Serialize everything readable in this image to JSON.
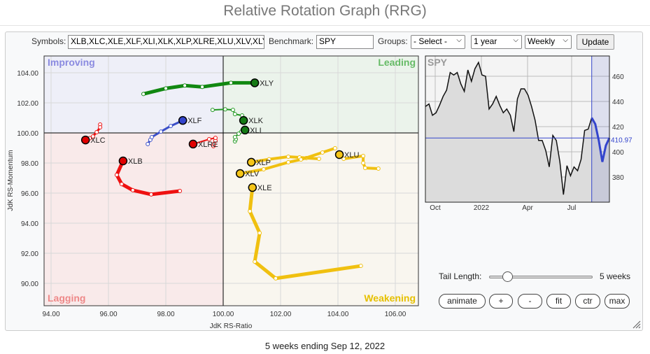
{
  "title": "Relative Rotation Graph (RRG)",
  "controls": {
    "symbols_label": "Symbols:",
    "symbols_value": "XLB,XLC,XLE,XLF,XLI,XLK,XLP,XLRE,XLU,XLV,XLY",
    "benchmark_label": "Benchmark:",
    "benchmark_value": "SPY",
    "groups_label": "Groups:",
    "groups_value": "- Select -",
    "period_value": "1 year",
    "frequency_value": "Weekly",
    "update_label": "Update",
    "tail_length_label": "Tail Length:",
    "tail_length_value": "5 weeks",
    "tail_length_fraction": 0.17,
    "buttons": [
      "animate",
      "+",
      "-",
      "fit",
      "ctr",
      "max"
    ]
  },
  "footer": "5 weeks ending Sep 12, 2022",
  "chart_data": [
    {
      "type": "scatter",
      "subtype": "rrg",
      "xlabel": "JdK RS-Ratio",
      "ylabel": "JdK RS-Momentum",
      "xlim": [
        93.8,
        106.8
      ],
      "ylim": [
        89.2,
        105.2
      ],
      "xticks": [
        "94.00",
        "96.00",
        "98.00",
        "100.00",
        "102.00",
        "104.00",
        "106.00"
      ],
      "yticks": [
        "90.00",
        "92.00",
        "94.00",
        "96.00",
        "98.00",
        "100.00",
        "102.00",
        "104.00"
      ],
      "grid": true,
      "quadrants": [
        {
          "name": "Improving",
          "color": "#8a8ae0",
          "bg": "#eeeff8"
        },
        {
          "name": "Leading",
          "color": "#66bb66",
          "bg": "#ebf3eb"
        },
        {
          "name": "Lagging",
          "color": "#ee8888",
          "bg": "#f9eaea"
        },
        {
          "name": "Weakening",
          "color": "#e6c000",
          "bg": "#f9f6ef"
        }
      ],
      "series": [
        {
          "name": "XLY",
          "color": "#118811",
          "head": "#157a15",
          "x": [
            97.22,
            98.0,
            98.66,
            99.27,
            100.27,
            101.1
          ],
          "y": [
            102.59,
            102.96,
            103.15,
            103.06,
            103.33,
            103.33
          ]
        },
        {
          "name": "XLK",
          "color": "#229922",
          "head": "#157a15",
          "x": [
            99.63,
            100.07,
            100.34,
            100.41,
            100.66,
            100.71
          ],
          "y": [
            101.53,
            101.57,
            101.53,
            101.25,
            101.16,
            100.83
          ]
        },
        {
          "name": "XLI",
          "color": "#229922",
          "head": "#157a15",
          "x": [
            100.41,
            100.44,
            100.41,
            100.54,
            100.63,
            100.76
          ],
          "y": [
            99.44,
            99.58,
            99.72,
            99.95,
            100.09,
            100.19
          ]
        },
        {
          "name": "XLF",
          "color": "#3b4fc8",
          "head": "#3344cc",
          "x": [
            97.37,
            97.46,
            97.51,
            97.83,
            98.17,
            98.59
          ],
          "y": [
            99.26,
            99.54,
            99.72,
            100.09,
            100.46,
            100.83
          ]
        },
        {
          "name": "XLC",
          "color": "#ee1111",
          "head": "#e00000",
          "x": [
            95.71,
            95.71,
            95.59,
            95.46,
            95.35,
            95.2
          ],
          "y": [
            100.56,
            100.37,
            100.05,
            99.77,
            99.65,
            99.53
          ]
        },
        {
          "name": "XLRE",
          "color": "#ee1111",
          "head": "#e00000",
          "x": [
            99.66,
            99.68,
            99.73,
            99.73,
            99.51,
            98.95
          ],
          "y": [
            99.12,
            99.26,
            99.49,
            99.67,
            99.58,
            99.26
          ]
        },
        {
          "name": "XLB",
          "color": "#ee1111",
          "head": "#e00000",
          "x": [
            98.49,
            97.49,
            96.85,
            96.46,
            96.29,
            96.51
          ],
          "y": [
            96.14,
            95.91,
            96.19,
            96.6,
            97.21,
            98.14
          ]
        },
        {
          "name": "XLP",
          "color": "#f0c010",
          "head": "#f5c518",
          "x": [
            103.34,
            102.9,
            102.66,
            102.27,
            101.6,
            100.98
          ],
          "y": [
            98.28,
            98.33,
            98.37,
            98.42,
            98.25,
            98.05
          ]
        },
        {
          "name": "XLV",
          "color": "#f0c010",
          "head": "#f5c518",
          "x": [
            103.9,
            103.46,
            102.71,
            102.27,
            101.41,
            100.59
          ],
          "y": [
            98.98,
            98.7,
            98.23,
            98.05,
            97.58,
            97.3
          ]
        },
        {
          "name": "XLU",
          "color": "#f0c010",
          "head": "#f5c518",
          "x": [
            105.41,
            104.95,
            104.88,
            104.88,
            104.2,
            104.05
          ],
          "y": [
            97.63,
            97.67,
            98.0,
            98.47,
            98.28,
            98.56
          ]
        },
        {
          "name": "XLE",
          "color": "#f0c010",
          "head": "#f5c518",
          "x": [
            104.8,
            101.83,
            101.1,
            101.27,
            100.93,
            101.02
          ],
          "y": [
            91.16,
            90.33,
            91.44,
            93.35,
            94.79,
            96.37
          ]
        }
      ]
    },
    {
      "type": "line",
      "title": "SPY",
      "current_value_label": "410.97",
      "current_value": 410.97,
      "xticks": [
        "Oct",
        "2022",
        "Apr",
        "Jul"
      ],
      "yticks": [
        "380",
        "400",
        "420",
        "440",
        "460"
      ],
      "ylim": [
        358,
        480
      ],
      "grid": true,
      "line_color": "#111111",
      "highlight_color": "#3344cc",
      "highlight_last_n": 6,
      "values": [
        436,
        438,
        429,
        431,
        437,
        444,
        449,
        463,
        461,
        463,
        454,
        448,
        465,
        456,
        466,
        471,
        461,
        460,
        434,
        438,
        444,
        437,
        431,
        434,
        429,
        416,
        442,
        450,
        450,
        445,
        436,
        425,
        409,
        409,
        401,
        388,
        413,
        409,
        392,
        366,
        389,
        381,
        388,
        385,
        394,
        417,
        418,
        427,
        422,
        409,
        392,
        405,
        411
      ]
    }
  ]
}
